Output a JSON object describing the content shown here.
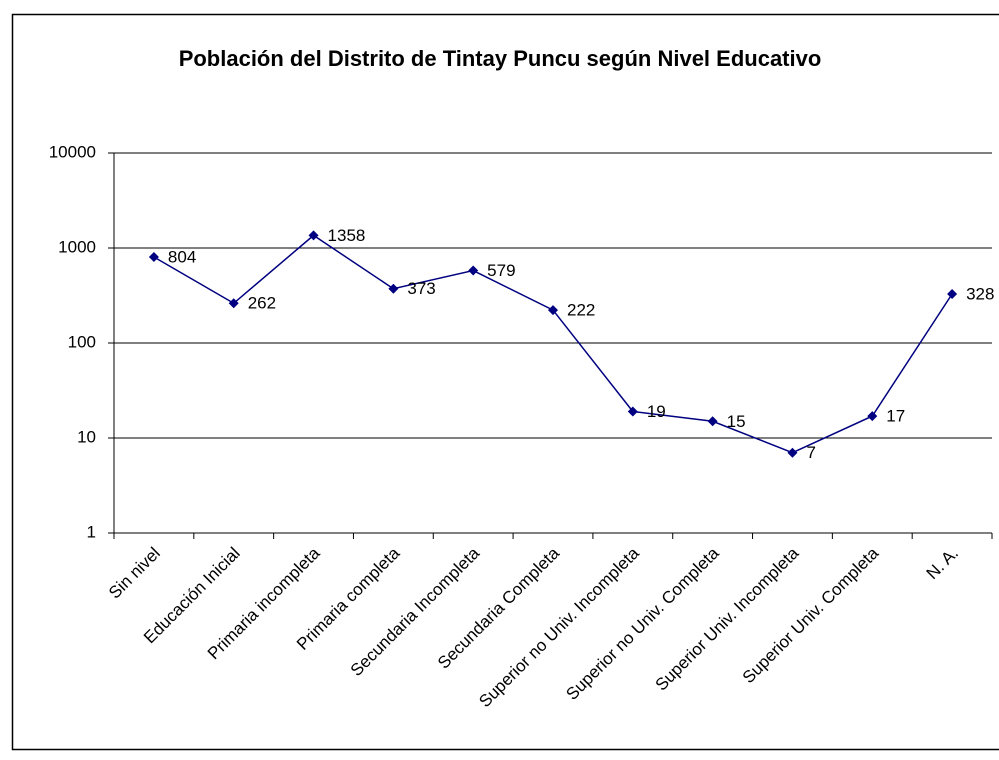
{
  "chart_data": {
    "type": "line",
    "title": "Población del Distrito de Tintay Puncu según Nivel Educativo",
    "categories": [
      "Sin nivel",
      "Educación Inicial",
      "Primaria incompleta",
      "Primaria completa",
      "Secundaria Incompleta",
      "Secundaria Completa",
      "Superior no Univ. Incompleta",
      "Superior no Univ. Completa",
      "Superior Univ. Incompleta",
      "Superior Univ. Completa",
      "N. A."
    ],
    "series": [
      {
        "color": "#000080",
        "values": [
          804,
          262,
          1358,
          373,
          579,
          222,
          19,
          15,
          7,
          17,
          328
        ]
      }
    ],
    "ylim": [
      1,
      10000
    ],
    "yticks": [
      1,
      10,
      100,
      1000,
      10000
    ],
    "log_scale": true,
    "grid": true
  }
}
